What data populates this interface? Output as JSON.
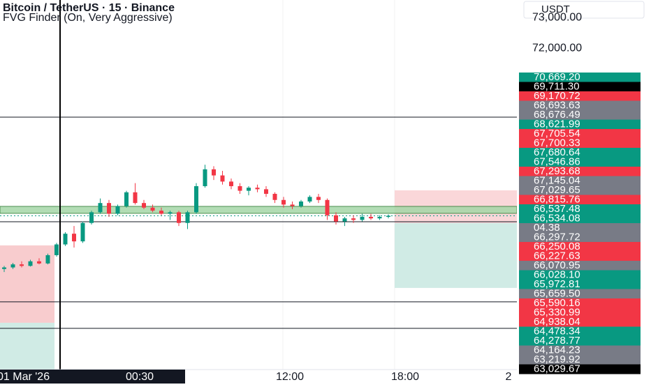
{
  "chart_data": {
    "type": "candlestick",
    "title": "Bitcoin / TetherUS · 15 · Binance",
    "subtitle": "FVG Finder (On, Very Aggressive)",
    "currency": "USDT",
    "ylim": [
      61520,
      73570
    ],
    "yticks": [
      {
        "value": 72000,
        "label": "72,000.00"
      },
      {
        "value": 73000,
        "label": "73,000.00"
      }
    ],
    "time_labels": [
      "01 Mar '26",
      "00:30",
      "12:00",
      "18:00",
      "2"
    ],
    "up_color": "#089981",
    "down_color": "#f23645",
    "candles": [
      [
        64800,
        64900,
        64700,
        64850
      ],
      [
        64850,
        65000,
        64800,
        64950
      ],
      [
        64950,
        65050,
        64850,
        64900
      ],
      [
        64900,
        65100,
        64880,
        65050
      ],
      [
        65050,
        65150,
        64950,
        64980
      ],
      [
        64980,
        65300,
        64950,
        65250
      ],
      [
        65250,
        65650,
        65200,
        65600
      ],
      [
        65600,
        66000,
        65550,
        65950
      ],
      [
        65950,
        66200,
        65500,
        65700
      ],
      [
        65700,
        66350,
        65650,
        66300
      ],
      [
        66300,
        66700,
        66250,
        66650
      ],
      [
        66650,
        67100,
        66600,
        66950
      ],
      [
        66950,
        67050,
        66500,
        66600
      ],
      [
        66600,
        66900,
        66550,
        66850
      ],
      [
        66850,
        67350,
        66800,
        67300
      ],
      [
        67300,
        67600,
        66900,
        66950
      ],
      [
        66950,
        67050,
        66750,
        66800
      ],
      [
        66800,
        66900,
        66650,
        66700
      ],
      [
        66700,
        66800,
        66550,
        66600
      ],
      [
        66600,
        66700,
        66400,
        66650
      ],
      [
        66650,
        66700,
        66200,
        66300
      ],
      [
        66300,
        66700,
        66100,
        66650
      ],
      [
        66650,
        67600,
        66600,
        67500
      ],
      [
        67500,
        68200,
        67450,
        68050
      ],
      [
        68050,
        68150,
        67700,
        67850
      ],
      [
        67850,
        68000,
        67550,
        67650
      ],
      [
        67650,
        67750,
        67400,
        67500
      ],
      [
        67500,
        67600,
        67250,
        67350
      ],
      [
        67350,
        67500,
        67200,
        67450
      ],
      [
        67450,
        67550,
        67300,
        67400
      ],
      [
        67400,
        67500,
        67150,
        67250
      ],
      [
        67250,
        67300,
        66950,
        67050
      ],
      [
        67050,
        67150,
        66800,
        66900
      ],
      [
        66900,
        67000,
        66750,
        66850
      ],
      [
        66850,
        67050,
        66800,
        67000
      ],
      [
        67000,
        67200,
        66950,
        67150
      ],
      [
        67150,
        67250,
        66950,
        67050
      ],
      [
        67050,
        67100,
        66400,
        66550
      ],
      [
        66550,
        66650,
        66250,
        66350
      ],
      [
        66350,
        66500,
        66200,
        66450
      ],
      [
        66450,
        66550,
        66300,
        66400
      ],
      [
        66400,
        66600,
        66350,
        66500
      ],
      [
        66500,
        66600,
        66400,
        66450
      ],
      [
        66450,
        66550,
        66400,
        66500
      ],
      [
        66500,
        66580,
        66450,
        66534
      ]
    ],
    "levels": [
      69750,
      66341,
      63727,
      62864
    ],
    "fvg_band": [
      66841,
      66614
    ],
    "current_price": 66534.08,
    "zones": [
      {
        "color": "#f7c6c9",
        "from": 65568,
        "to": 63045,
        "side": "left"
      },
      {
        "color": "#cbe9e2",
        "from": 63045,
        "to": 61520,
        "side": "left"
      },
      {
        "color": "#f9d3d5",
        "from": 67364,
        "to": 66295,
        "side": "right"
      },
      {
        "color": "#cbe9e2",
        "from": 66295,
        "to": 64182,
        "side": "right"
      }
    ],
    "price_labels": [
      {
        "text": "70,669.20",
        "color": "#089981"
      },
      {
        "text": "69,711.30",
        "color": "#000000"
      },
      {
        "text": "69,170.72",
        "color": "#f23645"
      },
      {
        "text": "68,693.63",
        "color": "#787b86"
      },
      {
        "text": "68,676.49",
        "color": "#787b86"
      },
      {
        "text": "68,621.99",
        "color": "#089981"
      },
      {
        "text": "67,705.54",
        "color": "#f23645"
      },
      {
        "text": "67,700.33",
        "color": "#f23645"
      },
      {
        "text": "67,680.64",
        "color": "#089981"
      },
      {
        "text": "67,546.86",
        "color": "#089981"
      },
      {
        "text": "67,293.68",
        "color": "#f23645"
      },
      {
        "text": "67,145.04",
        "color": "#787b86"
      },
      {
        "text": "67,029.65",
        "color": "#787b86"
      },
      {
        "text": "66,815.76",
        "color": "#f23645"
      },
      {
        "text": "66,537.48",
        "color": "#089981"
      },
      {
        "text": "66,534.08",
        "color": "#089981"
      },
      {
        "text": "04.38",
        "color": "#787b86"
      },
      {
        "text": "66,297.72",
        "color": "#787b86"
      },
      {
        "text": "66,250.08",
        "color": "#f23645"
      },
      {
        "text": "66,227.63",
        "color": "#f23645"
      },
      {
        "text": "66,070.95",
        "color": "#787b86"
      },
      {
        "text": "66,028.10",
        "color": "#089981"
      },
      {
        "text": "65,972.81",
        "color": "#089981"
      },
      {
        "text": "65,659.50",
        "color": "#787b86"
      },
      {
        "text": "65,590.16",
        "color": "#f23645"
      },
      {
        "text": "65,330.99",
        "color": "#f23645"
      },
      {
        "text": "64,938.04",
        "color": "#f23645"
      },
      {
        "text": "64,478.34",
        "color": "#089981"
      },
      {
        "text": "64,278.77",
        "color": "#089981"
      },
      {
        "text": "64,164.23",
        "color": "#787b86"
      },
      {
        "text": "63,219.92",
        "color": "#787b86"
      },
      {
        "text": "63,029.67",
        "color": "#000000"
      }
    ]
  }
}
